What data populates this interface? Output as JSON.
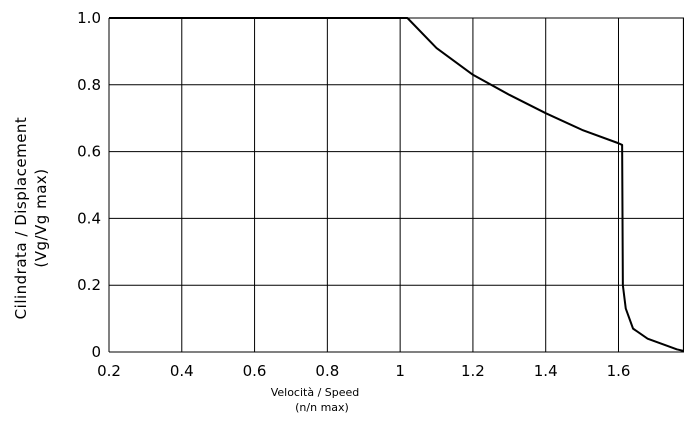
{
  "chart_data": {
    "type": "line",
    "title": "",
    "xlabel_lines": [
      "Velocità  /  Speed",
      "(n/n max)"
    ],
    "ylabel_lines": [
      "Cilindrata  /  Displacement",
      "(Vg/Vg  max)"
    ],
    "xlim": [
      0.2,
      1.78
    ],
    "ylim": [
      0,
      1.0
    ],
    "xticks": [
      0.2,
      0.4,
      0.6,
      0.8,
      1.0,
      1.2,
      1.4,
      1.6
    ],
    "xtick_labels": [
      "0.2",
      "0.4",
      "0.6",
      "0.8",
      "1",
      "1.2",
      "1.4",
      "1.6"
    ],
    "yticks": [
      0,
      0.2,
      0.4,
      0.6,
      0.8,
      1.0
    ],
    "ytick_labels": [
      "0",
      "0.2",
      "0.4",
      "0.6",
      "0.8",
      "1.0"
    ],
    "grid": true,
    "legend": "none",
    "series": [
      {
        "x": [
          0.2,
          1.0,
          1.02,
          1.1,
          1.2,
          1.3,
          1.4,
          1.5,
          1.6,
          1.61,
          1.612,
          1.62,
          1.64,
          1.68,
          1.73,
          1.76,
          1.78
        ],
        "y": [
          1.0,
          1.0,
          1.0,
          0.91,
          0.83,
          0.77,
          0.715,
          0.665,
          0.625,
          0.62,
          0.2,
          0.13,
          0.07,
          0.04,
          0.02,
          0.008,
          0.003
        ]
      }
    ]
  }
}
